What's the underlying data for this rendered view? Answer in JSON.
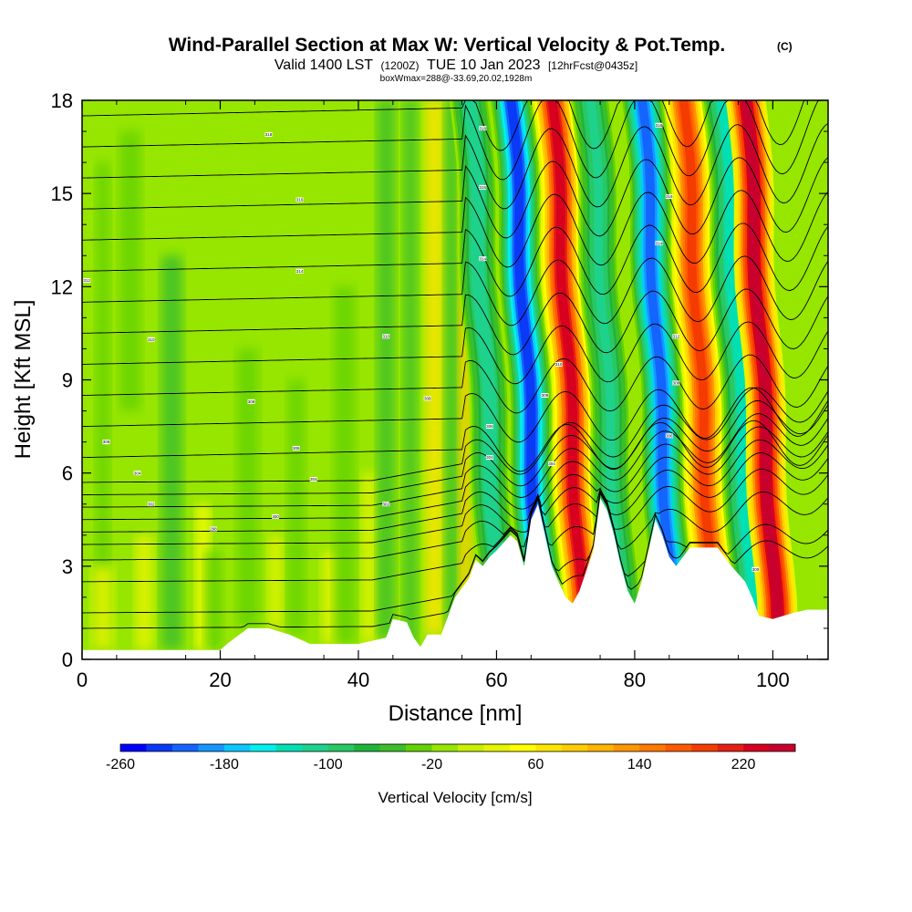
{
  "chart_data": {
    "type": "heatmap",
    "title": "Wind-Parallel Section at Max W: Vertical Velocity & Pot.Temp.",
    "title_mark": "(C)",
    "subtitle_main_a": "Valid 1400 LST",
    "subtitle_small_a": "(1200Z)",
    "subtitle_main_b": "TUE 10 Jan 2023",
    "subtitle_small_b": "[12hrFcst@0435z]",
    "subtitle2": "boxWmax=288@-33.69,20.02,1928m",
    "xlabel": "Distance [nm]",
    "ylabel": "Height [Kft MSL]",
    "xlim": [
      0,
      108
    ],
    "ylim": [
      0,
      18
    ],
    "xticks": [
      0,
      20,
      40,
      60,
      80,
      100
    ],
    "yticks": [
      0,
      3,
      6,
      9,
      12,
      15,
      18
    ],
    "colorbar": {
      "label": "Vertical Velocity [cm/s]",
      "min": -260,
      "max": 260,
      "step": 20,
      "tick_labels": [
        "-260",
        "-180",
        "-100",
        "-20",
        "60",
        "140",
        "220"
      ],
      "colors": [
        "#0000ff",
        "#0a3af5",
        "#1464ff",
        "#1496ff",
        "#0ac8ff",
        "#00f0f0",
        "#00e0b4",
        "#1ed28c",
        "#28c864",
        "#1eb43c",
        "#3cbe28",
        "#64d200",
        "#96e600",
        "#c8f000",
        "#e6f500",
        "#ffff00",
        "#ffe600",
        "#ffcd00",
        "#ffb400",
        "#ff9600",
        "#ff7800",
        "#ff5a00",
        "#f53c00",
        "#e61e14",
        "#d7001e",
        "#c8002d"
      ]
    },
    "velocity_bands_cm_s": [
      {
        "center_x_nm": 58.5,
        "peak": -120
      },
      {
        "center_x_nm": 64.5,
        "peak": -230
      },
      {
        "center_x_nm": 70.5,
        "peak": 235
      },
      {
        "center_x_nm": 76.0,
        "peak": -110
      },
      {
        "center_x_nm": 83.5,
        "peak": -215
      },
      {
        "center_x_nm": 89.5,
        "peak": 195
      },
      {
        "center_x_nm": 95.0,
        "peak": -130
      },
      {
        "center_x_nm": 98.5,
        "peak": 260
      }
    ],
    "terrain_kft": [
      [
        0,
        0.3
      ],
      [
        10,
        0.3
      ],
      [
        20,
        0.3
      ],
      [
        21,
        0.5
      ],
      [
        24,
        1
      ],
      [
        27,
        1
      ],
      [
        30,
        0.8
      ],
      [
        33,
        0.5
      ],
      [
        40,
        0.5
      ],
      [
        44,
        0.7
      ],
      [
        45,
        1.3
      ],
      [
        47,
        1.2
      ],
      [
        48,
        0.7
      ],
      [
        49,
        0.4
      ],
      [
        50,
        0.8
      ],
      [
        52,
        0.8
      ],
      [
        54,
        2
      ],
      [
        56,
        2.6
      ],
      [
        57,
        3.2
      ],
      [
        58,
        3
      ],
      [
        59,
        3.3
      ],
      [
        60,
        3.5
      ],
      [
        62,
        4
      ],
      [
        63,
        3.8
      ],
      [
        64,
        3
      ],
      [
        65,
        4.5
      ],
      [
        66,
        5
      ],
      [
        67,
        4
      ],
      [
        68,
        3
      ],
      [
        69,
        2.5
      ],
      [
        70,
        2
      ],
      [
        71,
        1.8
      ],
      [
        72,
        2.2
      ],
      [
        74,
        3.5
      ],
      [
        75,
        5.2
      ],
      [
        76,
        4.8
      ],
      [
        77,
        4
      ],
      [
        78,
        3
      ],
      [
        79,
        2.2
      ],
      [
        80,
        1.8
      ],
      [
        81,
        2.5
      ],
      [
        82,
        3.5
      ],
      [
        83,
        4.5
      ],
      [
        84,
        4
      ],
      [
        85,
        3.3
      ],
      [
        86,
        3
      ],
      [
        88,
        3.6
      ],
      [
        92,
        3.6
      ],
      [
        94,
        3
      ],
      [
        96,
        2.5
      ],
      [
        97,
        2
      ],
      [
        98,
        1.4
      ],
      [
        100,
        1.3
      ],
      [
        103,
        1.5
      ],
      [
        105,
        1.6
      ],
      [
        108,
        1.6
      ]
    ],
    "isentropes_kft": [
      1,
      1.5,
      2.5,
      3.2,
      3.7,
      4.1,
      4.5,
      4.9,
      5.3,
      5.7,
      6.5,
      7.5,
      8.5,
      9.5,
      10.5,
      11.5,
      12.5,
      13.5,
      14.5,
      15.5,
      16.5,
      17.5
    ],
    "contour_labels": [
      {
        "x": 0.7,
        "y": 12.2,
        "text": "312"
      },
      {
        "x": 10,
        "y": 10.3,
        "text": "310"
      },
      {
        "x": 27,
        "y": 16.9,
        "text": "318"
      },
      {
        "x": 31.5,
        "y": 14.8,
        "text": "316"
      },
      {
        "x": 31.5,
        "y": 12.5,
        "text": "314"
      },
      {
        "x": 24.5,
        "y": 8.3,
        "text": "308"
      },
      {
        "x": 3.5,
        "y": 7.0,
        "text": "306"
      },
      {
        "x": 31,
        "y": 6.8,
        "text": "306"
      },
      {
        "x": 8,
        "y": 6.0,
        "text": "304"
      },
      {
        "x": 33.5,
        "y": 5.8,
        "text": "304"
      },
      {
        "x": 10,
        "y": 5.0,
        "text": "302"
      },
      {
        "x": 44,
        "y": 5.0,
        "text": "302"
      },
      {
        "x": 28,
        "y": 4.6,
        "text": "300"
      },
      {
        "x": 19,
        "y": 4.2,
        "text": "298"
      },
      {
        "x": 44,
        "y": 10.4,
        "text": "310"
      },
      {
        "x": 50,
        "y": 8.4,
        "text": "308"
      },
      {
        "x": 58,
        "y": 17.1,
        "text": "318"
      },
      {
        "x": 58,
        "y": 15.2,
        "text": "316"
      },
      {
        "x": 58,
        "y": 12.9,
        "text": "314"
      },
      {
        "x": 59,
        "y": 7.5,
        "text": "306"
      },
      {
        "x": 59,
        "y": 6.5,
        "text": "304"
      },
      {
        "x": 67,
        "y": 8.5,
        "text": "308"
      },
      {
        "x": 69,
        "y": 9.5,
        "text": "310"
      },
      {
        "x": 68,
        "y": 6.3,
        "text": "304"
      },
      {
        "x": 83.5,
        "y": 17.2,
        "text": "318"
      },
      {
        "x": 85,
        "y": 14.9,
        "text": "316"
      },
      {
        "x": 83.5,
        "y": 13.4,
        "text": "314"
      },
      {
        "x": 86,
        "y": 10.4,
        "text": "312"
      },
      {
        "x": 86,
        "y": 8.9,
        "text": "308"
      },
      {
        "x": 85,
        "y": 7.2,
        "text": "306"
      },
      {
        "x": 97.5,
        "y": 2.9,
        "text": "300"
      }
    ]
  }
}
